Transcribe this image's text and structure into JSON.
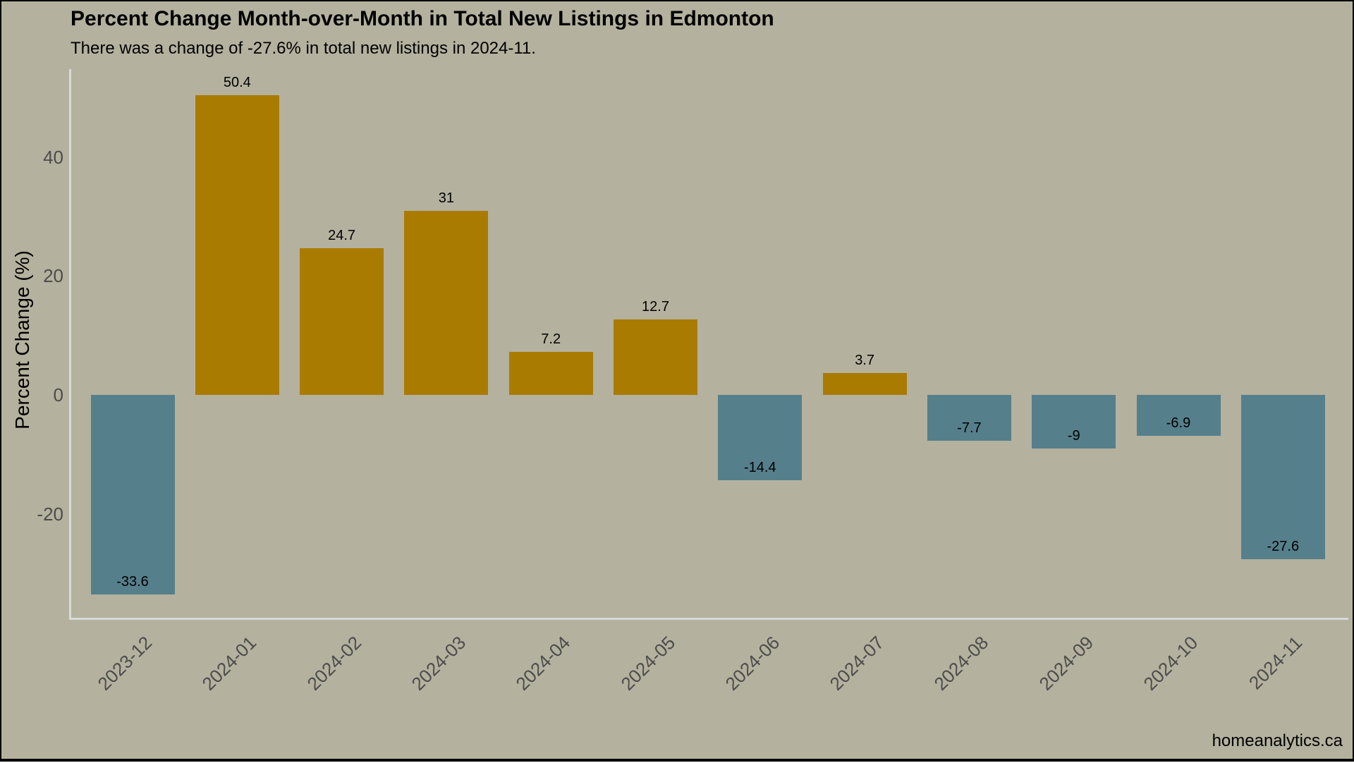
{
  "header": {
    "title": "Percent Change Month-over-Month in Total New Listings in Edmonton",
    "subtitle": "There was a change of -27.6% in total new listings in 2024-11."
  },
  "footer": {
    "brand": "homeanalytics.ca"
  },
  "chart_data": {
    "type": "bar",
    "title": "Percent Change Month-over-Month in Total New Listings in Edmonton",
    "subtitle": "There was a change of -27.6% in total new listings in 2024-11.",
    "categories": [
      "2023-12",
      "2024-01",
      "2024-02",
      "2024-03",
      "2024-04",
      "2024-05",
      "2024-06",
      "2024-07",
      "2024-08",
      "2024-09",
      "2024-10",
      "2024-11"
    ],
    "values": [
      -33.6,
      50.4,
      24.7,
      31,
      7.2,
      12.7,
      -14.4,
      3.7,
      -7.7,
      -9,
      -6.9,
      -27.6
    ],
    "value_labels": [
      "-33.6",
      "50.4",
      "24.7",
      "31",
      "7.2",
      "12.7",
      "-14.4",
      "3.7",
      "-7.7",
      "-9",
      "-6.9",
      "-27.6"
    ],
    "xlabel": "",
    "ylabel": "Percent Change (%)",
    "yticks": [
      40,
      20,
      0,
      -20
    ],
    "ylim": [
      -36,
      55
    ],
    "grid": false,
    "legend": "none",
    "label_placement": "positive labels above bar, negative labels inside bar near bottom",
    "colors": {
      "positive_bar": "#a97b00",
      "negative_bar": "#557f8b",
      "background": "#b4b19e",
      "axis_line": "#d8dadb",
      "tick_text": "#4c4c4c",
      "value_text": "#000000",
      "border": "#000000"
    }
  }
}
